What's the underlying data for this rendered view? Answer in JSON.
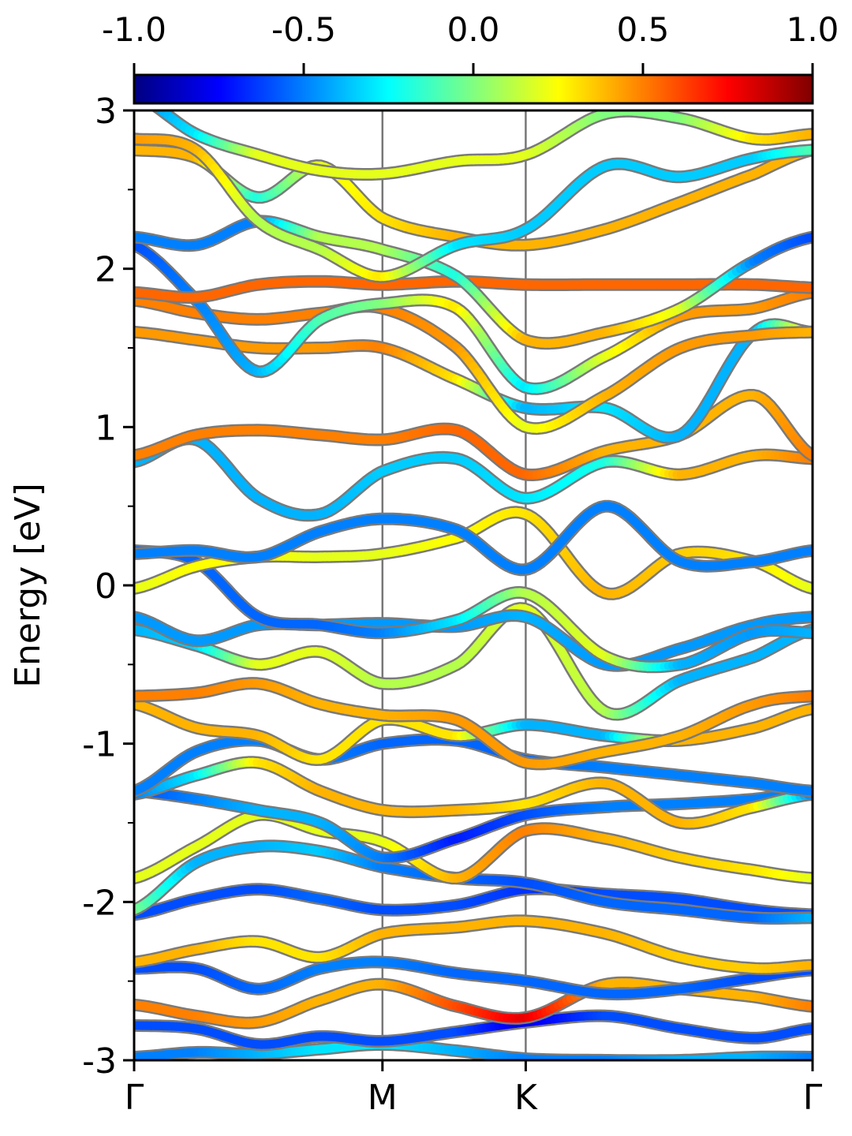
{
  "chart_data": {
    "type": "line",
    "title": "",
    "xlabel": "",
    "ylabel": "Energy [eV]",
    "ylim": [
      -3,
      3
    ],
    "yticks": [
      3,
      2,
      1,
      0,
      -1,
      -2,
      -3
    ],
    "ytick_labels": [
      "3",
      "2",
      "1",
      "0",
      "-1",
      "-2",
      "-3"
    ],
    "kpath": [
      {
        "label": "Γ",
        "k": 0.0
      },
      {
        "label": "M",
        "k": 1.0
      },
      {
        "label": "K",
        "k": 1.577
      },
      {
        "label": "Γ",
        "k": 2.732
      }
    ],
    "grid": false,
    "colormap": "jet",
    "colorbar": {
      "position": "top",
      "range": [
        -1.0,
        1.0
      ],
      "ticks": [
        -1.0,
        -0.5,
        0.0,
        0.5,
        1.0
      ],
      "tick_labels": [
        "-1.0",
        "-0.5",
        "0.0",
        "0.5",
        "1.0"
      ]
    },
    "k_samples": [
      0,
      0.25,
      0.5,
      0.75,
      1.0,
      1.3,
      1.577,
      1.9,
      2.2,
      2.5,
      2.732
    ],
    "series": [
      {
        "energies": [
          -2.98,
          -2.95,
          -2.96,
          -2.93,
          -2.9,
          -2.94,
          -2.99,
          -3.0,
          -3.0,
          -2.98,
          -2.98
        ],
        "weights": [
          -0.5,
          -0.5,
          -0.4,
          -0.3,
          -0.3,
          -0.4,
          -0.5,
          -0.5,
          -0.4,
          -0.4,
          -0.5
        ]
      },
      {
        "energies": [
          -2.78,
          -2.8,
          -2.9,
          -2.85,
          -2.88,
          -2.82,
          -2.76,
          -2.72,
          -2.8,
          -2.86,
          -2.8
        ],
        "weights": [
          -0.6,
          -0.6,
          -0.6,
          -0.6,
          -0.6,
          -0.6,
          -0.8,
          -0.6,
          -0.6,
          -0.6,
          -0.6
        ]
      },
      {
        "energies": [
          -2.65,
          -2.72,
          -2.76,
          -2.62,
          -2.52,
          -2.66,
          -2.73,
          -2.52,
          -2.55,
          -2.6,
          -2.66
        ],
        "weights": [
          0.5,
          0.5,
          0.45,
          0.4,
          0.4,
          0.6,
          0.8,
          0.4,
          0.4,
          0.4,
          0.5
        ]
      },
      {
        "energies": [
          -2.42,
          -2.42,
          -2.55,
          -2.42,
          -2.38,
          -2.45,
          -2.5,
          -2.58,
          -2.55,
          -2.48,
          -2.43
        ],
        "weights": [
          -0.6,
          -0.6,
          -0.55,
          -0.5,
          -0.5,
          -0.55,
          -0.55,
          -0.55,
          -0.55,
          -0.6,
          -0.6
        ]
      },
      {
        "energies": [
          -2.38,
          -2.3,
          -2.25,
          -2.35,
          -2.2,
          -2.16,
          -2.12,
          -2.2,
          -2.35,
          -2.42,
          -2.4
        ],
        "weights": [
          0.4,
          0.4,
          0.3,
          0.3,
          0.4,
          0.4,
          0.4,
          0.4,
          0.35,
          0.35,
          0.4
        ]
      },
      {
        "energies": [
          -2.08,
          -1.98,
          -1.92,
          -1.98,
          -2.05,
          -2.02,
          -1.92,
          -1.95,
          -1.98,
          -2.05,
          -2.08
        ],
        "weights": [
          -0.6,
          -0.6,
          -0.6,
          -0.55,
          -0.6,
          -0.6,
          -0.65,
          -0.6,
          -0.6,
          -0.6,
          -0.6
        ]
      },
      {
        "energies": [
          -2.05,
          -1.75,
          -1.65,
          -1.68,
          -1.78,
          -1.85,
          -1.88,
          -2.0,
          -2.05,
          -2.1,
          -2.1
        ],
        "weights": [
          0.0,
          -0.4,
          -0.4,
          -0.35,
          -0.5,
          -0.55,
          -0.6,
          -0.55,
          -0.55,
          -0.55,
          -0.4
        ]
      },
      {
        "energies": [
          -1.85,
          -1.65,
          -1.45,
          -1.55,
          -1.62,
          -1.85,
          -1.55,
          -1.6,
          -1.72,
          -1.8,
          -1.85
        ],
        "weights": [
          0.2,
          0.2,
          0.2,
          0.2,
          0.2,
          0.4,
          0.5,
          0.4,
          0.35,
          0.3,
          0.2
        ]
      },
      {
        "energies": [
          -1.3,
          -1.35,
          -1.42,
          -1.5,
          -1.72,
          -1.6,
          -1.45,
          -1.4,
          -1.38,
          -1.35,
          -1.3
        ],
        "weights": [
          -0.6,
          -0.5,
          -0.4,
          -0.4,
          -0.5,
          -0.7,
          -0.6,
          -0.5,
          -0.5,
          -0.5,
          -0.5
        ]
      },
      {
        "energies": [
          -1.32,
          -1.2,
          -1.12,
          -1.3,
          -1.42,
          -1.42,
          -1.38,
          -1.25,
          -1.5,
          -1.4,
          -1.32
        ],
        "weights": [
          -0.5,
          -0.3,
          0.3,
          0.4,
          0.4,
          0.4,
          0.3,
          0.4,
          0.4,
          0.3,
          -0.5
        ]
      },
      {
        "energies": [
          -1.3,
          -1.05,
          -0.98,
          -1.1,
          -1.0,
          -0.98,
          -1.1,
          -1.15,
          -1.2,
          -1.25,
          -1.3
        ],
        "weights": [
          -0.5,
          -0.5,
          -0.5,
          -0.5,
          -0.55,
          -0.55,
          -0.55,
          -0.5,
          -0.5,
          -0.5,
          -0.5
        ]
      },
      {
        "energies": [
          -0.75,
          -0.9,
          -0.95,
          -1.1,
          -0.85,
          -0.95,
          -0.88,
          -0.95,
          -0.98,
          -0.9,
          -0.78
        ],
        "weights": [
          0.4,
          0.4,
          0.4,
          0.3,
          0.3,
          0.3,
          -0.4,
          -0.4,
          0.4,
          0.4,
          0.4
        ]
      },
      {
        "energies": [
          -0.7,
          -0.68,
          -0.62,
          -0.75,
          -0.82,
          -0.85,
          -1.12,
          -1.05,
          -0.95,
          -0.75,
          -0.7
        ],
        "weights": [
          0.5,
          0.5,
          0.45,
          0.4,
          0.4,
          0.45,
          0.45,
          0.4,
          0.4,
          0.45,
          0.5
        ]
      },
      {
        "energies": [
          -0.28,
          -0.38,
          -0.5,
          -0.42,
          -0.62,
          -0.5,
          -0.15,
          -0.8,
          -0.6,
          -0.45,
          -0.28
        ],
        "weights": [
          -0.4,
          -0.35,
          0.2,
          0.2,
          0.1,
          0.1,
          0.2,
          0.1,
          -0.4,
          -0.4,
          -0.4
        ]
      },
      {
        "energies": [
          -0.2,
          -0.35,
          -0.25,
          -0.25,
          -0.24,
          -0.26,
          -0.2,
          -0.5,
          -0.4,
          -0.25,
          -0.2
        ],
        "weights": [
          -0.45,
          -0.45,
          -0.45,
          -0.45,
          -0.45,
          -0.45,
          -0.4,
          -0.45,
          -0.45,
          -0.45,
          -0.45
        ]
      },
      {
        "energies": [
          0.22,
          0.15,
          -0.2,
          -0.25,
          -0.3,
          -0.22,
          -0.05,
          -0.45,
          -0.5,
          -0.3,
          -0.3
        ],
        "weights": [
          -0.55,
          -0.55,
          -0.55,
          -0.55,
          -0.5,
          -0.3,
          0.1,
          0.2,
          -0.4,
          -0.45,
          -0.4
        ]
      },
      {
        "energies": [
          -0.02,
          0.12,
          0.18,
          0.18,
          0.2,
          0.3,
          0.45,
          -0.05,
          0.2,
          0.15,
          -0.02
        ],
        "weights": [
          0.2,
          0.25,
          0.25,
          0.2,
          0.2,
          0.25,
          0.3,
          0.4,
          0.35,
          0.3,
          0.2
        ]
      },
      {
        "energies": [
          0.2,
          0.22,
          0.18,
          0.34,
          0.42,
          0.35,
          0.1,
          0.5,
          0.15,
          0.15,
          0.22
        ],
        "weights": [
          -0.5,
          -0.5,
          -0.5,
          -0.5,
          -0.5,
          -0.5,
          -0.5,
          -0.5,
          -0.5,
          -0.5,
          -0.5
        ]
      },
      {
        "energies": [
          0.78,
          0.92,
          0.55,
          0.45,
          0.72,
          0.8,
          0.55,
          0.78,
          0.7,
          0.82,
          0.8
        ],
        "weights": [
          -0.4,
          -0.4,
          -0.4,
          -0.4,
          -0.35,
          -0.35,
          -0.3,
          -0.2,
          0.4,
          0.4,
          0.5
        ]
      },
      {
        "energies": [
          0.82,
          0.95,
          0.98,
          0.95,
          0.92,
          0.98,
          0.7,
          0.85,
          0.95,
          1.2,
          0.82
        ],
        "weights": [
          0.5,
          0.5,
          0.5,
          0.5,
          0.5,
          0.55,
          0.55,
          0.4,
          0.4,
          0.4,
          0.5
        ]
      },
      {
        "energies": [
          1.6,
          1.55,
          1.5,
          1.5,
          1.5,
          1.3,
          1.12,
          1.12,
          0.95,
          1.6,
          1.6
        ],
        "weights": [
          0.45,
          0.45,
          0.45,
          0.45,
          0.5,
          0.3,
          -0.4,
          -0.3,
          -0.4,
          -0.4,
          0.4
        ]
      },
      {
        "energies": [
          1.8,
          1.72,
          1.68,
          1.72,
          1.75,
          1.5,
          1.0,
          1.2,
          1.5,
          1.58,
          1.6
        ],
        "weights": [
          0.5,
          0.5,
          0.5,
          0.5,
          0.5,
          0.45,
          0.2,
          0.4,
          0.45,
          0.45,
          0.4
        ]
      },
      {
        "energies": [
          2.15,
          1.8,
          1.35,
          1.68,
          1.78,
          1.75,
          1.25,
          1.45,
          1.7,
          1.75,
          1.85
        ],
        "weights": [
          -0.6,
          -0.5,
          -0.4,
          -0.1,
          0.0,
          0.3,
          -0.3,
          0.2,
          0.45,
          0.45,
          0.5
        ]
      },
      {
        "energies": [
          1.85,
          1.82,
          1.9,
          1.92,
          1.9,
          1.92,
          1.9,
          1.9,
          1.9,
          1.9,
          1.88
        ],
        "weights": [
          0.55,
          0.55,
          0.55,
          0.55,
          0.55,
          0.55,
          0.55,
          0.55,
          0.55,
          0.55,
          0.55
        ]
      },
      {
        "energies": [
          2.2,
          2.15,
          2.3,
          2.2,
          2.12,
          1.95,
          1.55,
          1.6,
          1.75,
          2.05,
          2.2
        ],
        "weights": [
          -0.5,
          -0.5,
          -0.5,
          0.1,
          0.1,
          -0.2,
          0.4,
          0.4,
          0.2,
          -0.5,
          -0.6
        ]
      },
      {
        "energies": [
          2.75,
          2.7,
          2.45,
          2.65,
          2.32,
          2.2,
          2.15,
          2.25,
          2.42,
          2.6,
          2.75
        ],
        "weights": [
          0.4,
          0.4,
          -0.2,
          0.2,
          0.3,
          0.4,
          0.4,
          0.4,
          0.4,
          0.4,
          0.4
        ]
      },
      {
        "energies": [
          2.82,
          2.75,
          2.3,
          2.12,
          1.95,
          2.15,
          2.25,
          2.65,
          2.58,
          2.7,
          2.75
        ],
        "weights": [
          0.45,
          0.4,
          0.1,
          0.1,
          0.3,
          -0.3,
          -0.35,
          -0.35,
          -0.35,
          -0.35,
          -0.1
        ]
      },
      {
        "energies": [
          3.1,
          2.85,
          2.72,
          2.62,
          2.6,
          2.68,
          2.72,
          2.98,
          2.95,
          2.82,
          2.85
        ],
        "weights": [
          -0.5,
          -0.3,
          0.2,
          0.2,
          0.2,
          0.2,
          0.2,
          0.0,
          0.0,
          0.3,
          0.4
        ]
      }
    ]
  }
}
